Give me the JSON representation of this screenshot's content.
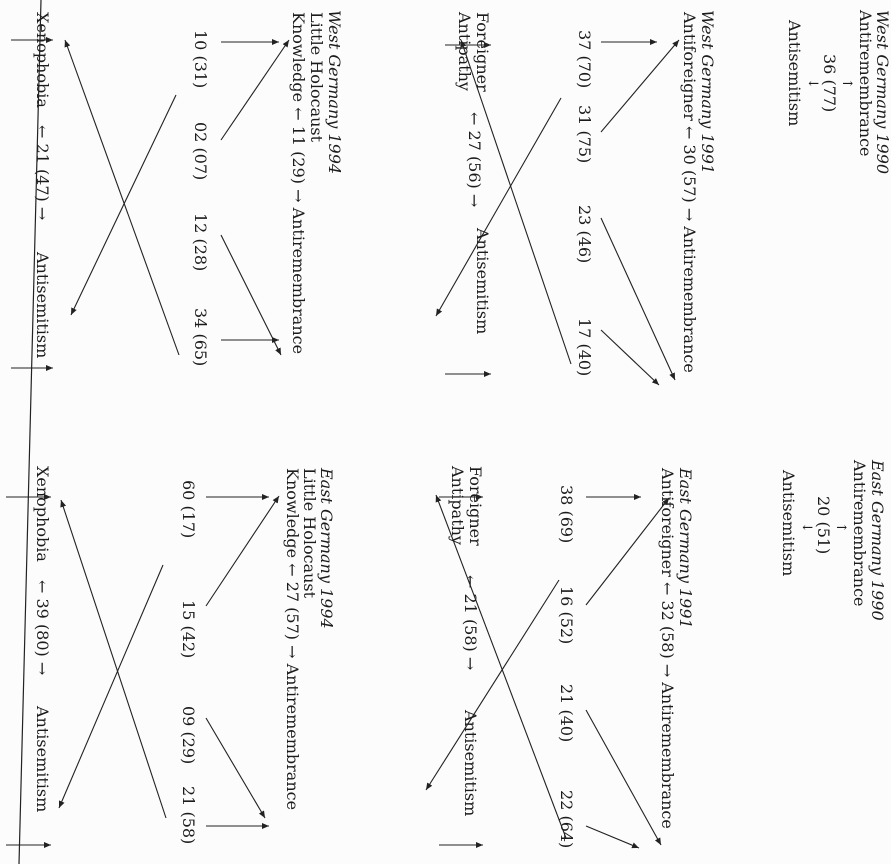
{
  "west": {
    "d1990": {
      "title": "West Germany 1990",
      "a": "Antiremembrance",
      "v": "36 (77)",
      "b": "Antisemitism"
    },
    "d1991": {
      "title": "West Germany 1991",
      "topLine": "Antiforeigner ← 30 (57) → Antiremembrance",
      "left": "Foreigner",
      "left2": "Antipathy",
      "mid": "← 27 (56) →",
      "right": "Antisemitism",
      "v1": "37 (70)",
      "v2": "31 (75)",
      "v3": "23 (46)",
      "v4": "17 (40)"
    },
    "d1994": {
      "title": "West Germany 1994",
      "sub": "Little Holocaust",
      "topLine": "Knowledge ← 11 (29) → Antiremembrance",
      "left": "Xenophobia",
      "mid": "← 21 (47) →",
      "right": "Antisemitism",
      "v1": "10 (31)",
      "v2": "02 (07)",
      "v3": "12 (28)",
      "v4": "34 (65)"
    }
  },
  "east": {
    "d1990": {
      "title": "East Germany 1990",
      "a": "Antiremembrance",
      "v": "20 (51)",
      "b": "Antisemitism"
    },
    "d1991": {
      "title": "East Germany 1991",
      "topLine": "Antiforeigner ← 32 (58) → Antiremembrance",
      "left": "Foreigner",
      "left2": "Antipathy",
      "mid": "← 21 (58) →",
      "right": "Antisemitism",
      "v1": "38 (69)",
      "v2": "16 (52)",
      "v3": "21 (40)",
      "v4": "22 (64)"
    },
    "d1994": {
      "title": "East Germany 1994",
      "sub": "Little Holocaust",
      "topLine": "Knowledge ← 27 (57) → Antiremembrance",
      "left": "Xenophobia",
      "mid": "← 39 (80) →",
      "right": "Antisemitism",
      "v1": "60 (17)",
      "v2": "15 (42)",
      "v3": "09 (29)",
      "v4": "21 (58)"
    }
  }
}
